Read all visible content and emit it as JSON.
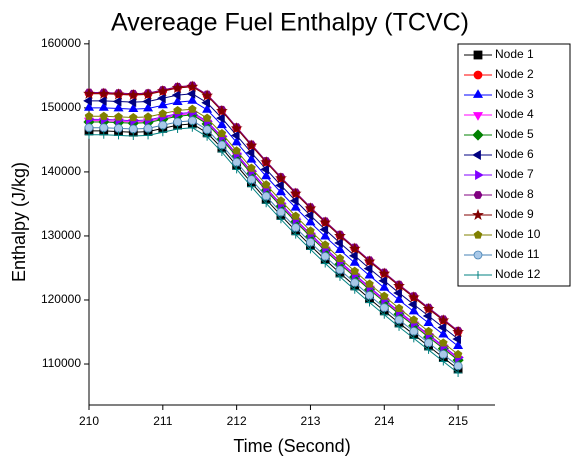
{
  "chart_data": {
    "type": "line",
    "title": "Avereage Fuel Enthalpy (TCVC)",
    "x_label": "Time (Second)",
    "y_label": "Enthalpy (J/kg)",
    "x": [
      210,
      210.2,
      210.4,
      210.6,
      210.8,
      211,
      211.2,
      211.4,
      211.6,
      211.8,
      212,
      212.2,
      212.4,
      212.6,
      212.8,
      213,
      213.2,
      213.4,
      213.6,
      213.8,
      214,
      214.2,
      214.4,
      214.6,
      214.8,
      215
    ],
    "xlim": [
      210,
      215.5
    ],
    "xticks": [
      210,
      211,
      212,
      213,
      214,
      215
    ],
    "ylim": [
      103600,
      160600
    ],
    "yticks": [
      110000,
      120000,
      130000,
      140000,
      150000,
      160000
    ],
    "legend": "top-right",
    "series": [
      {
        "name": "Node 1",
        "color": "#000000",
        "marker": "square",
        "values": [
          146400,
          146400,
          146300,
          146200,
          146300,
          146800,
          147300,
          147500,
          146100,
          143700,
          141000,
          138300,
          135700,
          133200,
          130800,
          128500,
          126300,
          124200,
          122200,
          120200,
          118300,
          116400,
          114600,
          112800,
          111000,
          109200
        ]
      },
      {
        "name": "Node 2",
        "color": "#ff0000",
        "marker": "circle",
        "values": [
          152300,
          152300,
          152200,
          152100,
          152200,
          152700,
          153200,
          153400,
          152000,
          149600,
          146900,
          144200,
          141600,
          139100,
          136700,
          134400,
          132200,
          130100,
          128100,
          126100,
          124200,
          122300,
          120500,
          118700,
          116900,
          115100
        ]
      },
      {
        "name": "Node 3",
        "color": "#0000ff",
        "marker": "triangle-up",
        "values": [
          150000,
          150000,
          149900,
          149800,
          149900,
          150400,
          150900,
          151100,
          149700,
          147300,
          144600,
          141900,
          139300,
          136800,
          134400,
          132100,
          129900,
          127800,
          125800,
          123800,
          121900,
          120000,
          118200,
          116400,
          114600,
          112800
        ]
      },
      {
        "name": "Node 4",
        "color": "#ff00ff",
        "marker": "triangle-down",
        "values": [
          148000,
          148000,
          147900,
          147800,
          147900,
          148400,
          148900,
          149100,
          147700,
          145300,
          142600,
          139900,
          137300,
          134800,
          132400,
          130100,
          127900,
          125800,
          123800,
          121800,
          119900,
          118000,
          116200,
          114400,
          112600,
          110800
        ]
      },
      {
        "name": "Node 5",
        "color": "#008000",
        "marker": "diamond",
        "values": [
          147800,
          147800,
          147700,
          147600,
          147700,
          148200,
          148700,
          148900,
          147500,
          145100,
          142400,
          139700,
          137100,
          134600,
          132200,
          129900,
          127700,
          125600,
          123600,
          121600,
          119700,
          117800,
          116000,
          114200,
          112400,
          110600
        ]
      },
      {
        "name": "Node 6",
        "color": "#000080",
        "marker": "triangle-left",
        "values": [
          151100,
          151100,
          151000,
          150900,
          151000,
          151500,
          152000,
          152200,
          150800,
          148400,
          145700,
          143000,
          140400,
          137900,
          135500,
          133200,
          131000,
          128900,
          126900,
          124900,
          123000,
          121100,
          119300,
          117500,
          115700,
          113900
        ]
      },
      {
        "name": "Node 7",
        "color": "#8000ff",
        "marker": "triangle-right",
        "values": [
          148200,
          148200,
          148100,
          148000,
          148100,
          148600,
          149100,
          149300,
          147900,
          145500,
          142800,
          140100,
          137500,
          135000,
          132600,
          130300,
          128100,
          126000,
          124000,
          122000,
          120100,
          118200,
          116400,
          114600,
          112800,
          111000
        ]
      },
      {
        "name": "Node 8",
        "color": "#800080",
        "marker": "hexagon",
        "values": [
          152400,
          152400,
          152300,
          152200,
          152300,
          152800,
          153300,
          153500,
          152100,
          149700,
          147000,
          144300,
          141700,
          139200,
          136800,
          134500,
          132300,
          130200,
          128200,
          126200,
          124300,
          122400,
          120600,
          118800,
          117000,
          115200
        ]
      },
      {
        "name": "Node 9",
        "color": "#800000",
        "marker": "star",
        "values": [
          152200,
          152200,
          152100,
          152000,
          152100,
          152600,
          153100,
          153300,
          151900,
          149500,
          146800,
          144100,
          141500,
          139000,
          136600,
          134300,
          132100,
          130000,
          128000,
          126000,
          124100,
          122200,
          120400,
          118600,
          116800,
          115000
        ]
      },
      {
        "name": "Node 10",
        "color": "#808000",
        "marker": "pentagon",
        "values": [
          148700,
          148700,
          148600,
          148500,
          148600,
          149100,
          149600,
          149800,
          148400,
          146000,
          143300,
          140600,
          138000,
          135500,
          133100,
          130800,
          128600,
          126500,
          124500,
          122500,
          120600,
          118700,
          116900,
          115100,
          113300,
          111500
        ]
      },
      {
        "name": "Node 11",
        "color": "#4682b4",
        "marker": "half-circle",
        "values": [
          146900,
          146900,
          146800,
          146700,
          146800,
          147300,
          147800,
          148000,
          146600,
          144200,
          141500,
          138800,
          136200,
          133700,
          131300,
          129000,
          126800,
          124700,
          122700,
          120700,
          118800,
          116900,
          115100,
          113300,
          111500,
          109700
        ]
      },
      {
        "name": "Node 12",
        "color": "#008080",
        "marker": "plus",
        "values": [
          145800,
          145800,
          145700,
          145600,
          145700,
          146200,
          146700,
          146900,
          145500,
          143100,
          140400,
          137700,
          135100,
          132600,
          130200,
          127900,
          125700,
          123600,
          121600,
          119600,
          117700,
          115800,
          114000,
          112200,
          110400,
          108600
        ]
      }
    ]
  }
}
